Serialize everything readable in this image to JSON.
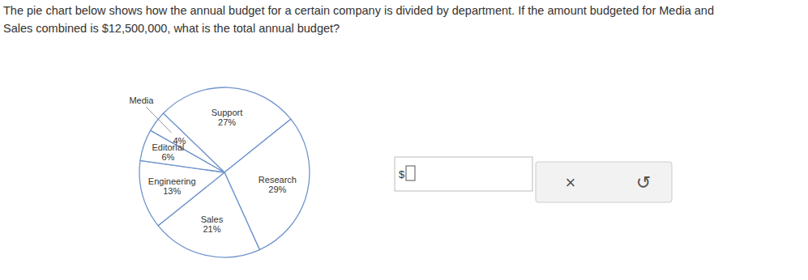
{
  "question": {
    "text": [
      "The pie chart below shows how the annual budget for a certain company is divided by department. If the amount budgeted for Media and",
      "Sales combined is $12,500,000, what is the total annual budget?"
    ]
  },
  "answer": {
    "prefix": "$"
  },
  "buttons": [
    "×",
    "↺"
  ],
  "chart_data": {
    "type": "pie",
    "categories": [
      "Support",
      "Research",
      "Sales",
      "Engineering",
      "Editorial",
      "Media"
    ],
    "values": [
      27,
      29,
      21,
      13,
      6,
      4
    ],
    "value_labels": [
      "27%",
      "29%",
      "21%",
      "13%",
      "6%",
      "4%"
    ],
    "data_labels": true,
    "color": "#7094cc"
  }
}
